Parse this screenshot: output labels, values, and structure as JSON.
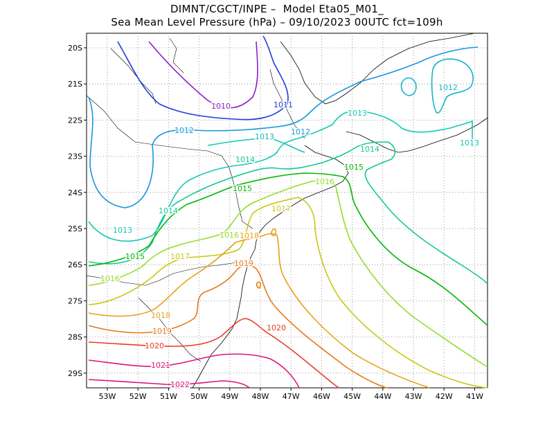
{
  "title_line1": "DIMNT/CGCT/INPE –  Model Eta05_M01_",
  "title_line2": "Sea Mean Level Pressure (hPa) – 09/10/2023 00UTC fct=109h",
  "y_ticks": [
    "20S",
    "21S",
    "22S",
    "23S",
    "24S",
    "25S",
    "26S",
    "27S",
    "28S",
    "29S"
  ],
  "x_ticks": [
    "53W",
    "52W",
    "51W",
    "50W",
    "49W",
    "48W",
    "47W",
    "46W",
    "45W",
    "44W",
    "43W",
    "42W",
    "41W"
  ],
  "isobar_labels": [
    {
      "text": "1010",
      "color": "#8a1ec8"
    },
    {
      "text": "1011",
      "color": "#1e3cdc"
    },
    {
      "text": "1012",
      "color": "#1496dc"
    },
    {
      "text": "1012",
      "color": "#1496dc"
    },
    {
      "text": "1012",
      "color": "#14b4c8"
    },
    {
      "text": "1013",
      "color": "#14c8b4"
    },
    {
      "text": "1013",
      "color": "#14b4b4"
    },
    {
      "text": "1013",
      "color": "#14c8b4"
    },
    {
      "text": "1013",
      "color": "#14c8b4"
    },
    {
      "text": "1014",
      "color": "#14c896"
    },
    {
      "text": "1014",
      "color": "#14c896"
    },
    {
      "text": "1014",
      "color": "#14c896"
    },
    {
      "text": "1015",
      "color": "#00b400"
    },
    {
      "text": "1015",
      "color": "#00b400"
    },
    {
      "text": "1015",
      "color": "#00b400"
    },
    {
      "text": "1016",
      "color": "#96dc28"
    },
    {
      "text": "1016",
      "color": "#96dc28"
    },
    {
      "text": "1016",
      "color": "#96dc28"
    },
    {
      "text": "1017",
      "color": "#c8c814"
    },
    {
      "text": "1017",
      "color": "#c8c814"
    },
    {
      "text": "1018",
      "color": "#e6a014"
    },
    {
      "text": "1018",
      "color": "#e6a014"
    },
    {
      "text": "1019",
      "color": "#e67814"
    },
    {
      "text": "1019",
      "color": "#e67814"
    },
    {
      "text": "1020",
      "color": "#e63c28"
    },
    {
      "text": "1020",
      "color": "#e63c28"
    },
    {
      "text": "1021",
      "color": "#dc1478"
    },
    {
      "text": "1022",
      "color": "#dc1478"
    }
  ]
}
